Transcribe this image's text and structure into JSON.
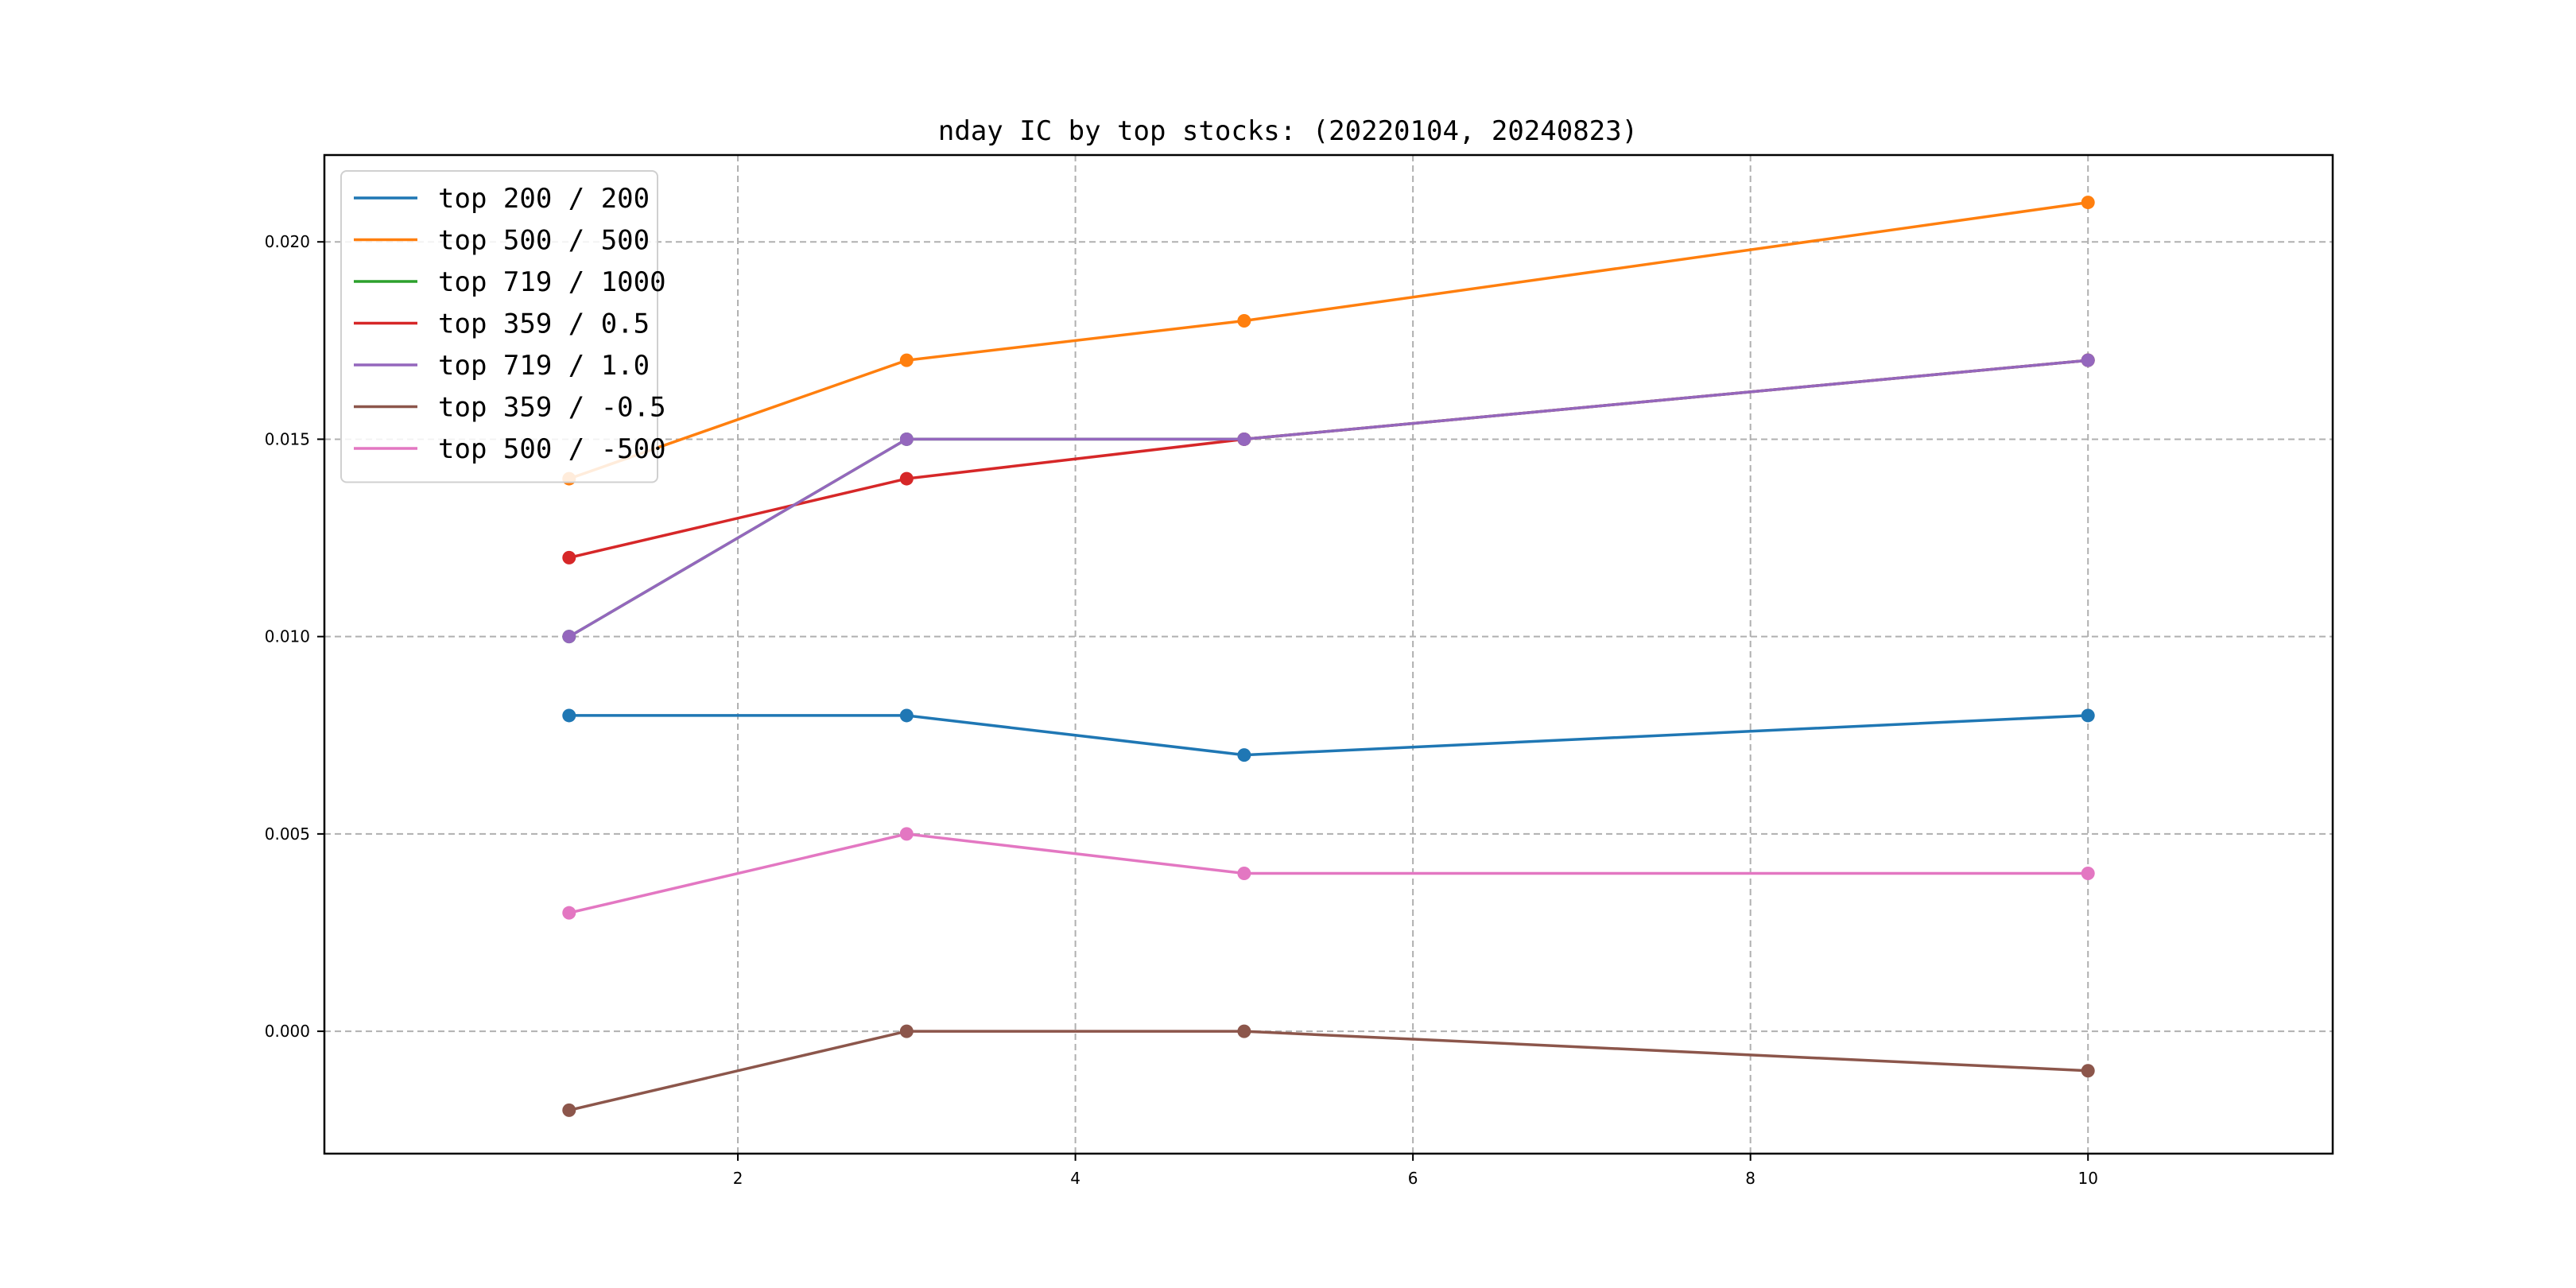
{
  "chart_data": {
    "type": "line",
    "title": "nday IC by top stocks: (20220104, 20240823)",
    "xlabel": "",
    "ylabel": "",
    "x": [
      1,
      3,
      5,
      10
    ],
    "xlim": [
      -0.45,
      11.45
    ],
    "ylim": [
      -0.0031,
      0.0222
    ],
    "xticks": [
      2,
      4,
      6,
      8,
      10
    ],
    "xtick_labels": [
      "2",
      "4",
      "6",
      "8",
      "10"
    ],
    "yticks": [
      0.0,
      0.005,
      0.01,
      0.015,
      0.02
    ],
    "ytick_labels": [
      "0.000",
      "0.005",
      "0.010",
      "0.015",
      "0.020"
    ],
    "grid": true,
    "legend_position": "top-left",
    "markers": true,
    "series": [
      {
        "name": "top 200 / 200",
        "color": "#1f77b4",
        "values": [
          0.008,
          0.008,
          0.007,
          0.008
        ]
      },
      {
        "name": "top 500 / 500",
        "color": "#ff7f0e",
        "values": [
          0.014,
          0.017,
          0.018,
          0.021
        ]
      },
      {
        "name": "top 719 / 1000",
        "color": "#2ca02c",
        "values": [
          0.01,
          0.015,
          0.015,
          0.017
        ]
      },
      {
        "name": "top 359 / 0.5",
        "color": "#d62728",
        "values": [
          0.012,
          0.014,
          0.015,
          0.017
        ]
      },
      {
        "name": "top 719 / 1.0",
        "color": "#9467bd",
        "values": [
          0.01,
          0.015,
          0.015,
          0.017
        ]
      },
      {
        "name": "top 359 / -0.5",
        "color": "#8c564b",
        "values": [
          -0.002,
          0.0,
          0.0,
          -0.001
        ]
      },
      {
        "name": "top 500 / -500",
        "color": "#e377c2",
        "values": [
          0.003,
          0.005,
          0.004,
          0.004
        ]
      }
    ]
  }
}
